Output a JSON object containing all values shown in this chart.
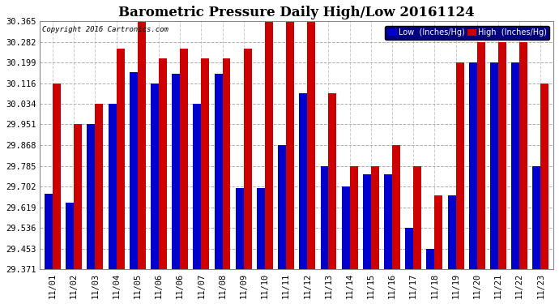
{
  "title": "Barometric Pressure Daily High/Low 20161124",
  "copyright": "Copyright 2016 Cartronics.com",
  "xlabels": [
    "11/01",
    "11/02",
    "11/03",
    "11/04",
    "11/05",
    "11/06",
    "11/06",
    "11/07",
    "11/08",
    "11/09",
    "11/10",
    "11/11",
    "11/12",
    "11/13",
    "11/14",
    "11/15",
    "11/16",
    "11/17",
    "11/18",
    "11/19",
    "11/20",
    "11/21",
    "11/22",
    "11/23"
  ],
  "low": [
    29.672,
    29.638,
    29.951,
    30.034,
    30.16,
    30.116,
    30.155,
    30.034,
    30.155,
    29.695,
    29.695,
    29.868,
    30.076,
    29.785,
    29.702,
    29.75,
    29.75,
    29.536,
    29.453,
    29.668,
    30.199,
    30.199,
    30.199,
    29.785
  ],
  "high": [
    30.116,
    29.951,
    30.034,
    30.255,
    30.365,
    30.215,
    30.255,
    30.215,
    30.215,
    30.255,
    30.365,
    30.365,
    30.365,
    30.076,
    29.785,
    29.785,
    29.868,
    29.785,
    29.668,
    30.199,
    30.282,
    30.282,
    30.282,
    30.116
  ],
  "ymin": 29.371,
  "ymax": 30.365,
  "yticks": [
    29.371,
    29.453,
    29.536,
    29.619,
    29.702,
    29.785,
    29.868,
    29.951,
    30.034,
    30.116,
    30.199,
    30.282,
    30.365
  ],
  "low_color": "#0000cc",
  "high_color": "#cc0000",
  "bg_color": "#ffffff",
  "grid_color": "#999999",
  "title_fontsize": 12,
  "legend_low_label": "Low  (Inches/Hg)",
  "legend_high_label": "High  (Inches/Hg)"
}
